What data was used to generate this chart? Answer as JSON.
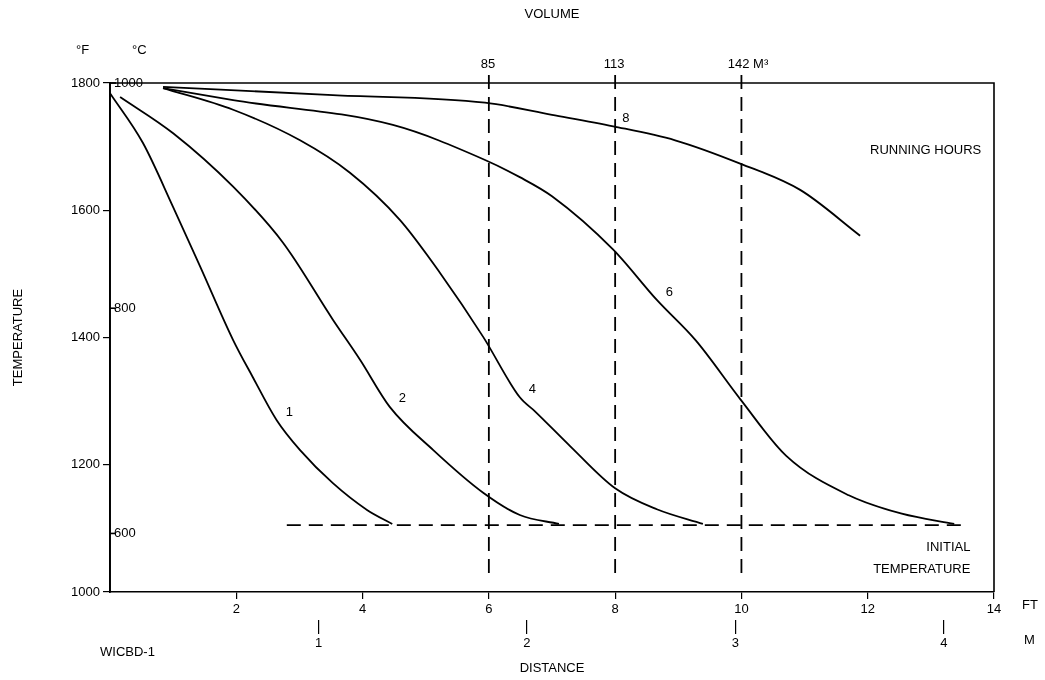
{
  "chart_data": {
    "type": "line",
    "xlabel": "DISTANCE",
    "ylabel": "TEMPERATURE",
    "xlim": [
      0,
      14
    ],
    "xticks": [
      2,
      4,
      6,
      8,
      10,
      12,
      14
    ],
    "x2lim": [
      0,
      4.24
    ],
    "x2ticks": [
      1,
      2,
      3,
      4
    ],
    "ylim": [
      1000,
      1800
    ],
    "yticks": [
      1000,
      1200,
      1400,
      1600,
      1800
    ],
    "y2lim": [
      548,
      1000
    ],
    "y2ticks": [
      600,
      800,
      1000
    ],
    "marker": "none",
    "grid": false,
    "ref_lines": [
      {
        "axis": "x",
        "value": 6,
        "line_style": "dashed",
        "color": "#000000"
      },
      {
        "axis": "x",
        "value": 8,
        "line_style": "dashed",
        "color": "#000000"
      },
      {
        "axis": "x",
        "value": 10,
        "line_style": "dashed",
        "color": "#000000"
      }
    ],
    "annotations": [
      "RUNNING HOURS",
      "WICBD-1",
      "°F",
      "°C",
      "FT",
      "M",
      "VOLUME",
      "85",
      "113",
      "142 M³"
    ],
    "series": [
      {
        "name": "1",
        "color": "#000000",
        "x": [
          0,
          0.52,
          1.0,
          1.43,
          1.95,
          2.26,
          2.64,
          3.01,
          3.53,
          4.07,
          4.47
        ],
        "values": [
          1784,
          1706,
          1605,
          1511,
          1396,
          1338,
          1270,
          1223,
          1171,
          1129,
          1107
        ]
      },
      {
        "name": "2",
        "color": "#000000",
        "x": [
          0.16,
          1.0,
          1.95,
          2.74,
          3.53,
          3.96,
          4.43,
          5.12,
          5.91,
          6.49,
          7.11
        ],
        "values": [
          1778,
          1721,
          1637,
          1549,
          1428,
          1365,
          1291,
          1223,
          1156,
          1121,
          1107
        ]
      },
      {
        "name": "4",
        "color": "#000000",
        "x": [
          0.84,
          1.95,
          3.01,
          3.8,
          4.59,
          5.23,
          5.91,
          6.49,
          6.73,
          7.29,
          8.0,
          8.66,
          9.39
        ],
        "values": [
          1792,
          1758,
          1710,
          1659,
          1585,
          1501,
          1401,
          1306,
          1284,
          1229,
          1163,
          1130,
          1107
        ]
      },
      {
        "name": "6",
        "color": "#000000",
        "x": [
          0.84,
          1.95,
          4.48,
          5.94,
          6.49,
          7.0,
          7.97,
          8.66,
          9.28,
          9.99,
          10.71,
          11.7,
          12.54,
          13.37
        ],
        "values": [
          1792,
          1773,
          1734,
          1679,
          1652,
          1622,
          1538,
          1459,
          1395,
          1302,
          1214,
          1152,
          1123,
          1107
        ]
      },
      {
        "name": "8",
        "color": "#000000",
        "x": [
          0.84,
          3.53,
          5.94,
          7.0,
          7.97,
          8.95,
          9.99,
          10.93,
          11.88
        ],
        "values": [
          1794,
          1781,
          1769,
          1750,
          1732,
          1710,
          1673,
          1632,
          1560
        ]
      },
      {
        "name": "INITIAL TEMPERATURE",
        "color": "#000000",
        "line_style": "dashed",
        "x": [
          2.8,
          13.5
        ],
        "values": [
          1105,
          1105
        ]
      }
    ]
  }
}
